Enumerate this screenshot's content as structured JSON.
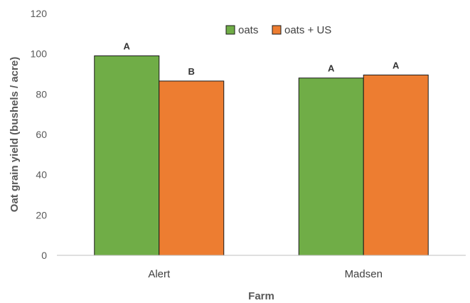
{
  "chart_data": {
    "type": "bar",
    "categories": [
      "Alert",
      "Madsen"
    ],
    "series": [
      {
        "name": "oats",
        "values": [
          99,
          88
        ],
        "color": "#70AD47",
        "labels": [
          "A",
          "A"
        ]
      },
      {
        "name": "oats + US",
        "values": [
          86.5,
          89.5
        ],
        "color": "#ED7D31",
        "labels": [
          "B",
          "A"
        ]
      }
    ],
    "xlabel": "Farm",
    "ylabel": "Oat grain yield (bushels / acre)",
    "ylim": [
      0,
      120
    ],
    "yticks": [
      0,
      20,
      40,
      60,
      80,
      100,
      120
    ],
    "grid": false,
    "legend_position": "top-right"
  }
}
